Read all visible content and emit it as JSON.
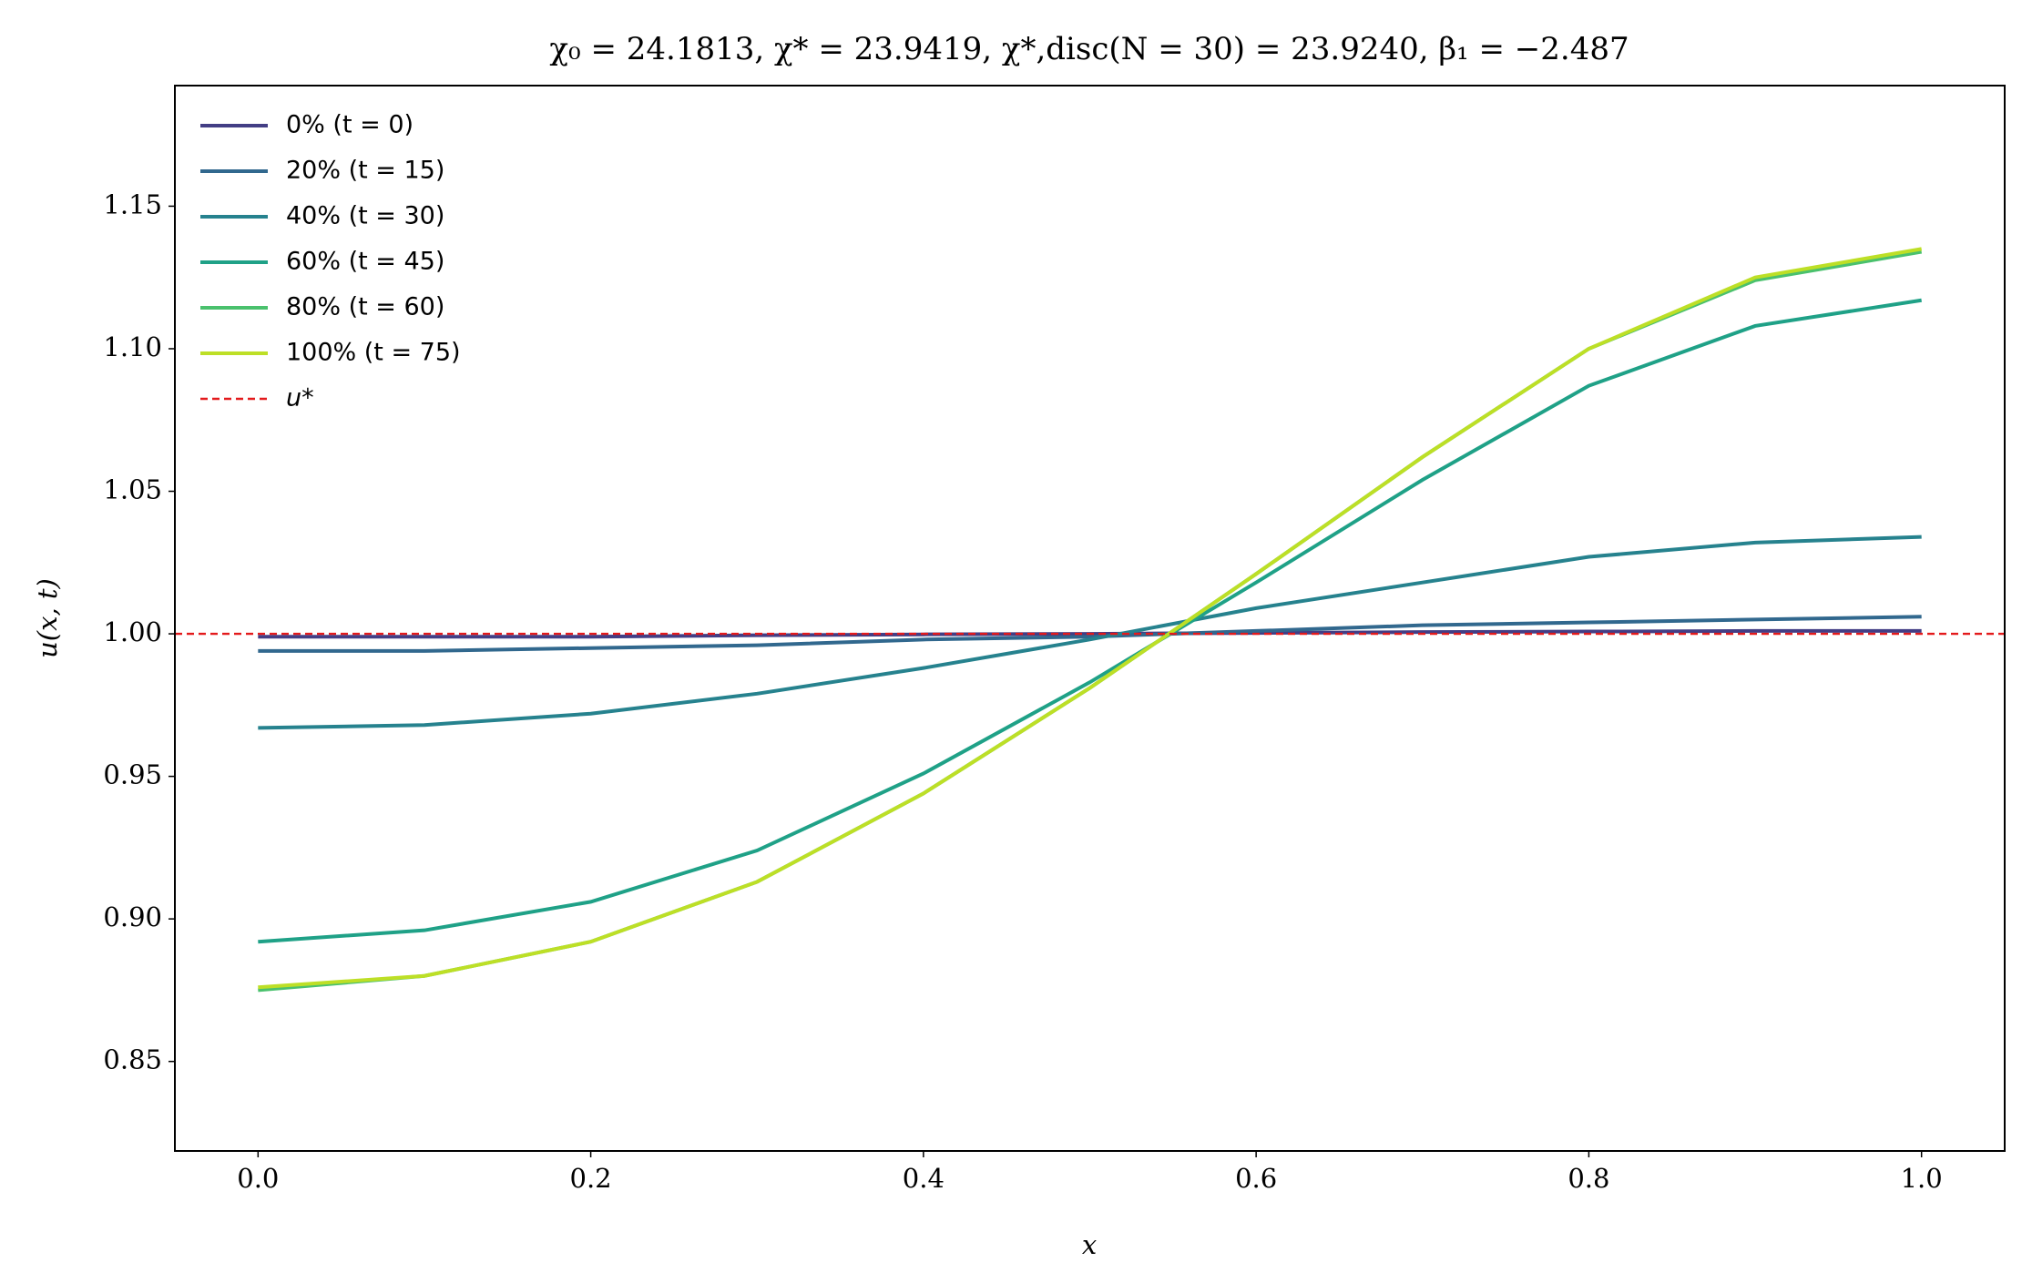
{
  "chart_data": {
    "type": "line",
    "title": "χ₀ = 24.1813,  χ* = 23.9419,  χ*,disc(N = 30) = 23.9240,  β₁ = −2.487",
    "xlabel": "x",
    "ylabel": "u(x, t)",
    "x": [
      0,
      0.1,
      0.2,
      0.3,
      0.4,
      0.5,
      0.6,
      0.7,
      0.8,
      0.9,
      1.0
    ],
    "series": [
      {
        "name": "0% (t = 0)",
        "color": "#433e85",
        "values": [
          0.999,
          0.999,
          0.999,
          0.9995,
          0.9998,
          1.0,
          1.0003,
          1.0006,
          1.0008,
          1.001,
          1.001
        ]
      },
      {
        "name": "20% (t = 15)",
        "color": "#31688e",
        "values": [
          0.994,
          0.994,
          0.995,
          0.996,
          0.998,
          0.999,
          1.001,
          1.003,
          1.004,
          1.005,
          1.006
        ]
      },
      {
        "name": "40% (t = 30)",
        "color": "#26828e",
        "values": [
          0.967,
          0.968,
          0.972,
          0.979,
          0.988,
          0.998,
          1.009,
          1.018,
          1.027,
          1.032,
          1.034
        ]
      },
      {
        "name": "60% (t = 45)",
        "color": "#1fa187",
        "values": [
          0.892,
          0.896,
          0.906,
          0.924,
          0.951,
          0.983,
          1.018,
          1.054,
          1.087,
          1.108,
          1.117
        ]
      },
      {
        "name": "80% (t = 60)",
        "color": "#4ac16d",
        "values": [
          0.875,
          0.88,
          0.892,
          0.913,
          0.944,
          0.981,
          1.021,
          1.062,
          1.1,
          1.124,
          1.134
        ]
      },
      {
        "name": "100% (t = 75)",
        "color": "#bddf26",
        "values": [
          0.876,
          0.88,
          0.892,
          0.913,
          0.944,
          0.981,
          1.021,
          1.062,
          1.1,
          1.125,
          1.135
        ]
      }
    ],
    "reference_line": {
      "name": "u*",
      "value": 1,
      "color": "#e31a1c",
      "style": "dashed"
    },
    "xlim": [
      -0.05,
      1.05
    ],
    "xticks": [
      {
        "value": 0,
        "label": "0.0"
      },
      0.2,
      0.4,
      0.6,
      0.8,
      {
        "value": 1,
        "label": "1.0"
      }
    ],
    "ylim": [
      0.8186,
      1.1923
    ],
    "yticks": [
      0.85,
      {
        "value": 0.9,
        "label": "0.90"
      },
      0.95,
      {
        "value": 1,
        "label": "1.00"
      },
      1.05,
      {
        "value": 1.1,
        "label": "1.10"
      },
      1.15
    ],
    "legend": "upper left",
    "grid": false
  }
}
